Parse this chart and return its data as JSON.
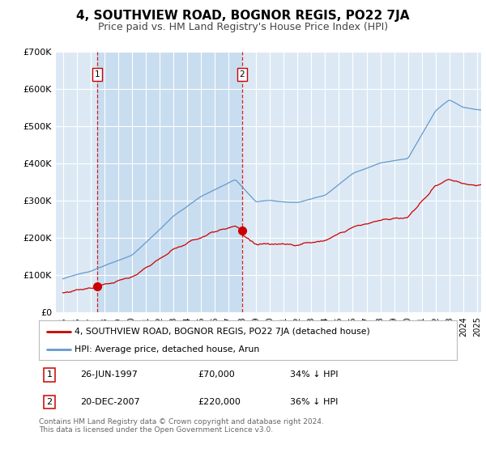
{
  "title": "4, SOUTHVIEW ROAD, BOGNOR REGIS, PO22 7JA",
  "subtitle": "Price paid vs. HM Land Registry's House Price Index (HPI)",
  "ylim": [
    0,
    700000
  ],
  "yticks": [
    0,
    100000,
    200000,
    300000,
    400000,
    500000,
    600000,
    700000
  ],
  "ytick_labels": [
    "£0",
    "£100K",
    "£200K",
    "£300K",
    "£400K",
    "£500K",
    "£600K",
    "£700K"
  ],
  "sale1_x": 1997.49,
  "sale1_y": 70000,
  "sale2_x": 2007.97,
  "sale2_y": 220000,
  "legend_red": "4, SOUTHVIEW ROAD, BOGNOR REGIS, PO22 7JA (detached house)",
  "legend_blue": "HPI: Average price, detached house, Arun",
  "ann1_label": "1",
  "ann1_date": "26-JUN-1997",
  "ann1_price": "£70,000",
  "ann1_hpi": "34% ↓ HPI",
  "ann2_label": "2",
  "ann2_date": "20-DEC-2007",
  "ann2_price": "£220,000",
  "ann2_hpi": "36% ↓ HPI",
  "footer": "Contains HM Land Registry data © Crown copyright and database right 2024.\nThis data is licensed under the Open Government Licence v3.0.",
  "bg_color": "#dce9f5",
  "shade_color": "#c8ddf0",
  "red_color": "#cc0000",
  "blue_color": "#6699cc",
  "title_fontsize": 11,
  "subtitle_fontsize": 9,
  "xmin": 1995.0,
  "xmax": 2025.0
}
